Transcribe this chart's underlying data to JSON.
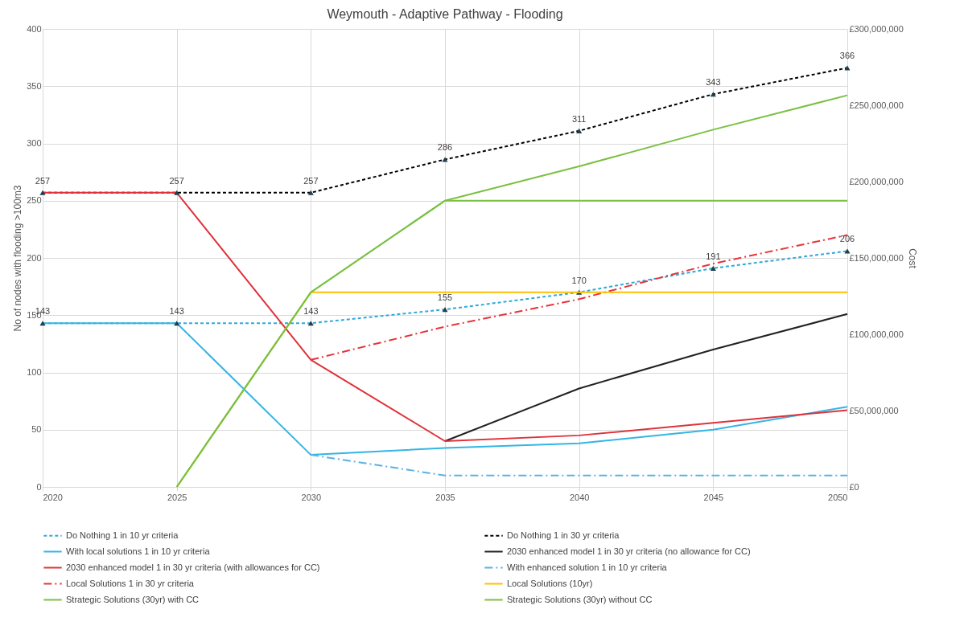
{
  "chart_data": {
    "type": "line",
    "title": "Weymouth - Adaptive Pathway - Flooding",
    "xlabel": null,
    "ylabel": "No of nodes with flooding >100m3",
    "y2label": "Cost",
    "x": [
      2020,
      2025,
      2030,
      2035,
      2040,
      2045,
      2050
    ],
    "xlim": [
      2020,
      2050
    ],
    "xticks": [
      2020,
      2025,
      2030,
      2035,
      2040,
      2045,
      2050
    ],
    "ylim": [
      0,
      400
    ],
    "yticks": [
      0,
      50,
      100,
      150,
      200,
      250,
      300,
      350,
      400
    ],
    "y2lim": [
      0,
      300000000
    ],
    "y2ticks": [
      {
        "value": 0,
        "label": "£0"
      },
      {
        "value": 50000000,
        "label": "£50,000,000"
      },
      {
        "value": 100000000,
        "label": "£100,000,000"
      },
      {
        "value": 150000000,
        "label": "£150,000,000"
      },
      {
        "value": 200000000,
        "label": "£200,000,000"
      },
      {
        "value": 250000000,
        "label": "£250,000,000"
      },
      {
        "value": 300000000,
        "label": "£300,000,000"
      }
    ],
    "grid": true,
    "legend": "bottom",
    "series": [
      {
        "name": "Do Nothing 1 in 10 yr criteria",
        "color": "#2fa9d9",
        "line_style": "dashed",
        "marker": "triangle",
        "values": [
          143,
          143,
          143,
          155,
          170,
          191,
          206
        ],
        "value_labels": [
          "143",
          "143",
          "143",
          "155",
          "170",
          "191",
          "206"
        ]
      },
      {
        "name": "Do Nothing 1 in 30 yr criteria",
        "color": "#000000",
        "line_style": "dashed",
        "marker": "triangle",
        "values": [
          257,
          257,
          257,
          286,
          311,
          343,
          366
        ],
        "value_labels": [
          "257",
          "257",
          "257",
          "286",
          "311",
          "343",
          "366"
        ]
      },
      {
        "name": "With local solutions 1 in 10 yr criteria",
        "color": "#33b5e5",
        "line_style": "solid",
        "values": [
          143,
          143,
          28,
          34,
          38,
          50,
          70
        ]
      },
      {
        "name": "2030 enhanced model 1 in 30 yr criteria (no allowance for CC)",
        "color": "#222222",
        "line_style": "solid",
        "values": [
          null,
          null,
          null,
          40,
          86,
          120,
          151
        ]
      },
      {
        "name": "2030 enhanced model 1 in 30 yr criteria (with allowances for CC)",
        "color": "#e0323a",
        "line_style": "solid",
        "values": [
          257,
          257,
          111,
          40,
          45,
          56,
          67
        ]
      },
      {
        "name": "With enhanced solution 1 in 10 yr criteria",
        "color": "#5ab0e4",
        "line_style": "dashdot",
        "values": [
          null,
          null,
          28,
          10,
          10,
          10,
          10
        ]
      },
      {
        "name": "Local Solutions 1 in 30 yr criteria",
        "color": "#e8343a",
        "line_style": "dashdot",
        "values": [
          null,
          null,
          111,
          140,
          164,
          195,
          220
        ]
      },
      {
        "name": "Local Solutions (10yr)",
        "color": "#ffc000",
        "line_style": "solid",
        "axis": "y2",
        "values": [
          null,
          0,
          127500000,
          127500000,
          127500000,
          127500000,
          127500000
        ]
      },
      {
        "name": "Strategic Solutions (30yr) with CC",
        "color": "#7ac143",
        "line_style": "solid",
        "axis": "y2",
        "values": [
          null,
          0,
          127500000,
          187500000,
          210000000,
          234000000,
          256500000
        ]
      },
      {
        "name": "Strategic Solutions (30yr) without CC",
        "color": "#7ac143",
        "line_style": "solid",
        "axis": "y2",
        "values": [
          null,
          0,
          127500000,
          187500000,
          187500000,
          187500000,
          187500000
        ]
      }
    ]
  }
}
